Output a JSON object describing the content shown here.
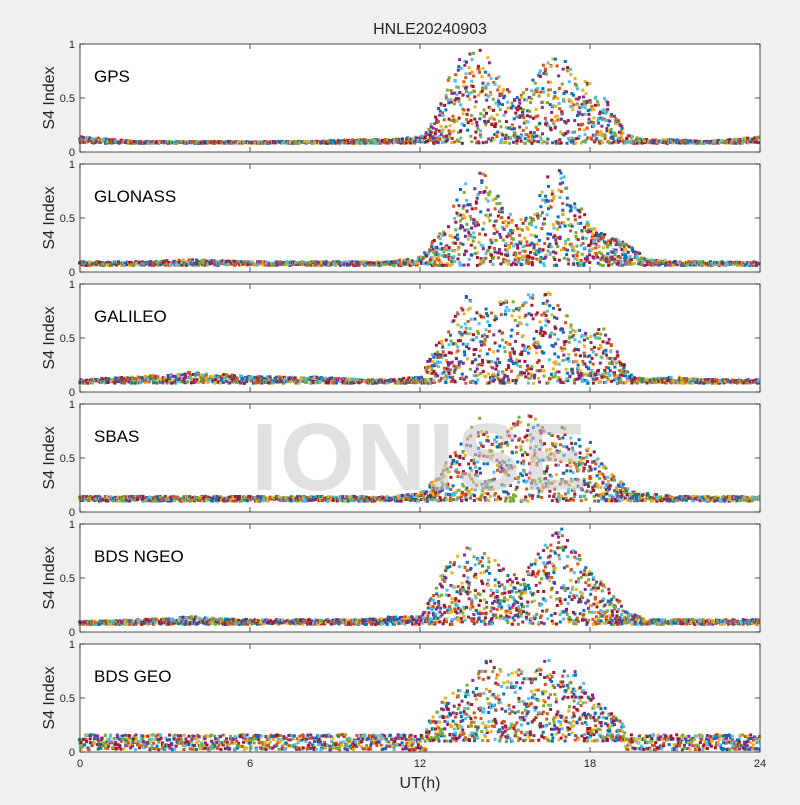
{
  "figure": {
    "title": "HNLE20240903",
    "xlabel": "UT(h)",
    "watermark": "IONISE"
  },
  "colors": {
    "background": "#f0f0f0",
    "axes_bg": "#ffffff",
    "axis_line": "#262626",
    "series": [
      "#0072BD",
      "#D95319",
      "#EDB120",
      "#7E2F8E",
      "#77AC30",
      "#4DBEEE",
      "#A2142F"
    ]
  },
  "chart_data": [
    {
      "type": "scatter",
      "label": "GPS",
      "ylabel": "S4 Index",
      "xlim": [
        0,
        24
      ],
      "ylim": [
        0,
        1
      ],
      "xticks": [
        0,
        6,
        12,
        18,
        24
      ],
      "yticks": [
        0,
        0.5,
        1
      ],
      "x_hours": [
        0,
        2,
        4,
        6,
        8,
        10,
        11,
        12,
        12.5,
        13,
        13.5,
        14,
        14.5,
        15,
        15.5,
        16,
        16.5,
        17,
        17.5,
        18,
        18.5,
        19,
        19.5,
        20,
        21,
        22,
        23,
        24
      ],
      "s4_envelope": [
        0.15,
        0.1,
        0.1,
        0.1,
        0.1,
        0.12,
        0.12,
        0.15,
        0.3,
        0.7,
        0.9,
        1.0,
        0.9,
        0.6,
        0.5,
        0.7,
        0.85,
        0.9,
        0.7,
        0.65,
        0.5,
        0.3,
        0.15,
        0.12,
        0.12,
        0.1,
        0.12,
        0.15
      ],
      "s4_background": 0.08
    },
    {
      "type": "scatter",
      "label": "GLONASS",
      "ylabel": "S4 Index",
      "xlim": [
        0,
        24
      ],
      "ylim": [
        0,
        1
      ],
      "xticks": [
        0,
        6,
        12,
        18,
        24
      ],
      "yticks": [
        0,
        0.5,
        1
      ],
      "x_hours": [
        0,
        2,
        4,
        6,
        8,
        10,
        11,
        12,
        12.5,
        13,
        13.5,
        14,
        14.5,
        15,
        15.5,
        16,
        16.5,
        17,
        17.5,
        18,
        18.5,
        19,
        19.5,
        20,
        21,
        22,
        23,
        24
      ],
      "s4_envelope": [
        0.1,
        0.1,
        0.12,
        0.1,
        0.1,
        0.1,
        0.1,
        0.15,
        0.3,
        0.5,
        0.8,
        1.0,
        0.85,
        0.6,
        0.5,
        0.55,
        0.9,
        0.95,
        0.7,
        0.45,
        0.35,
        0.3,
        0.25,
        0.12,
        0.1,
        0.1,
        0.1,
        0.1
      ],
      "s4_background": 0.06
    },
    {
      "type": "scatter",
      "label": "GALILEO",
      "ylabel": "S4 Index",
      "xlim": [
        0,
        24
      ],
      "ylim": [
        0,
        1
      ],
      "xticks": [
        0,
        6,
        12,
        18,
        24
      ],
      "yticks": [
        0,
        0.5,
        1
      ],
      "x_hours": [
        0,
        2,
        4,
        6,
        8,
        10,
        11,
        12,
        12.5,
        13,
        13.5,
        14,
        14.5,
        15,
        15.5,
        16,
        16.5,
        17,
        17.5,
        18,
        18.5,
        19,
        19.5,
        20,
        21,
        22,
        23,
        24
      ],
      "s4_envelope": [
        0.12,
        0.15,
        0.2,
        0.15,
        0.15,
        0.12,
        0.12,
        0.15,
        0.4,
        0.6,
        0.9,
        0.85,
        0.75,
        0.9,
        0.8,
        0.95,
        0.95,
        0.8,
        0.6,
        0.55,
        0.6,
        0.35,
        0.15,
        0.12,
        0.15,
        0.12,
        0.12,
        0.12
      ],
      "s4_background": 0.08
    },
    {
      "type": "scatter",
      "label": "SBAS",
      "ylabel": "S4 Index",
      "xlim": [
        0,
        24
      ],
      "ylim": [
        0,
        1
      ],
      "xticks": [
        0,
        6,
        12,
        18,
        24
      ],
      "yticks": [
        0,
        0.5,
        1
      ],
      "x_hours": [
        0,
        2,
        4,
        6,
        8,
        10,
        11,
        12,
        12.5,
        13,
        13.5,
        14,
        14.5,
        15,
        15.5,
        16,
        16.5,
        17,
        17.5,
        18,
        18.5,
        19,
        19.5,
        20,
        21,
        22,
        23,
        24
      ],
      "s4_envelope": [
        0.15,
        0.15,
        0.15,
        0.15,
        0.15,
        0.15,
        0.15,
        0.18,
        0.3,
        0.5,
        0.65,
        0.9,
        0.75,
        0.7,
        0.95,
        0.9,
        0.75,
        0.8,
        0.7,
        0.65,
        0.45,
        0.3,
        0.2,
        0.18,
        0.15,
        0.15,
        0.15,
        0.15
      ],
      "s4_background": 0.1
    },
    {
      "type": "scatter",
      "label": "BDS NGEO",
      "ylabel": "S4 Index",
      "xlim": [
        0,
        24
      ],
      "ylim": [
        0,
        1
      ],
      "xticks": [
        0,
        6,
        12,
        18,
        24
      ],
      "yticks": [
        0,
        0.5,
        1
      ],
      "x_hours": [
        0,
        2,
        4,
        6,
        8,
        10,
        11,
        12,
        12.5,
        13,
        13.5,
        14,
        14.5,
        15,
        15.5,
        16,
        16.5,
        17,
        17.5,
        18,
        18.5,
        19,
        19.5,
        20,
        21,
        22,
        23,
        24
      ],
      "s4_envelope": [
        0.1,
        0.12,
        0.15,
        0.12,
        0.12,
        0.12,
        0.15,
        0.15,
        0.35,
        0.7,
        0.75,
        0.85,
        0.7,
        0.6,
        0.5,
        0.65,
        0.9,
        1.0,
        0.75,
        0.6,
        0.45,
        0.3,
        0.18,
        0.12,
        0.12,
        0.12,
        0.12,
        0.12
      ],
      "s4_background": 0.07
    },
    {
      "type": "scatter",
      "label": "BDS GEO",
      "ylabel": "S4 Index",
      "xlim": [
        0,
        24
      ],
      "ylim": [
        0,
        1
      ],
      "xticks": [
        0,
        6,
        12,
        18,
        24
      ],
      "yticks": [
        0,
        0.5,
        1
      ],
      "x_hours": [
        0,
        2,
        4,
        6,
        8,
        10,
        11,
        12,
        12.5,
        13,
        13.5,
        14,
        14.5,
        15,
        15.5,
        16,
        16.5,
        17,
        17.5,
        18,
        18.5,
        19,
        19.5,
        20,
        21,
        22,
        23,
        24
      ],
      "s4_envelope": [
        0.12,
        0.12,
        0.12,
        0.12,
        0.12,
        0.12,
        0.12,
        0.15,
        0.35,
        0.55,
        0.6,
        0.75,
        0.9,
        0.7,
        0.85,
        0.75,
        0.95,
        0.8,
        0.75,
        0.55,
        0.45,
        0.3,
        0.18,
        0.15,
        0.15,
        0.15,
        0.15,
        0.15
      ],
      "s4_background": 0.1,
      "s4_bands": [
        0.15,
        0.12,
        0.09,
        0.06,
        0.03
      ]
    }
  ]
}
